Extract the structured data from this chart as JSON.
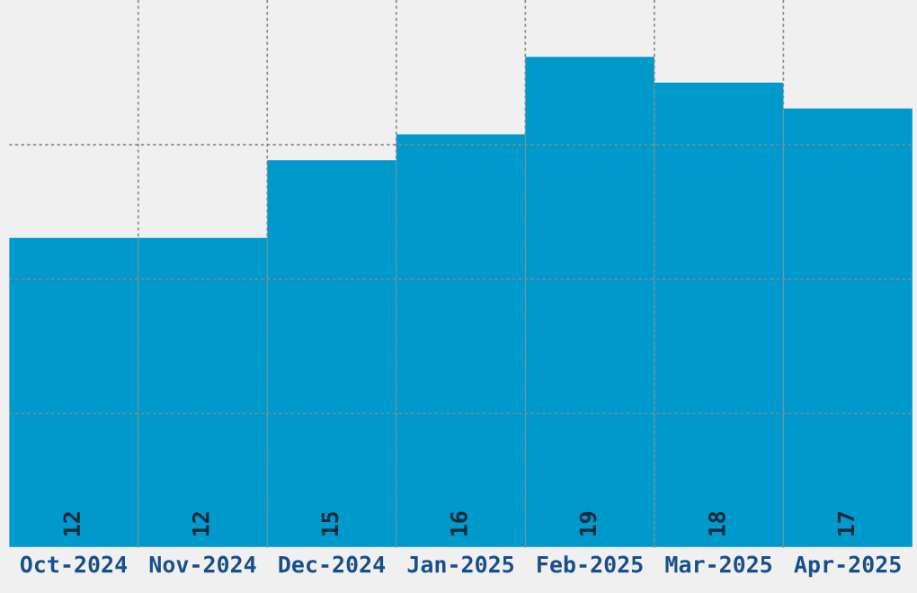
{
  "chart_data": {
    "type": "bar",
    "categories": [
      "Oct-2024",
      "Nov-2024",
      "Dec-2024",
      "Jan-2025",
      "Feb-2025",
      "Mar-2025",
      "Apr-2025"
    ],
    "values": [
      12,
      12,
      15,
      16,
      19,
      18,
      17
    ],
    "color": "#0099cc",
    "data_labels": true,
    "ylim": [
      0,
      21.2
    ],
    "yticks": [
      {
        "value": 5.2,
        "label": null
      },
      {
        "value": 10.4,
        "label": null
      },
      {
        "value": 15.6,
        "label": null
      }
    ],
    "grid": true,
    "tick_labels": "x"
  }
}
